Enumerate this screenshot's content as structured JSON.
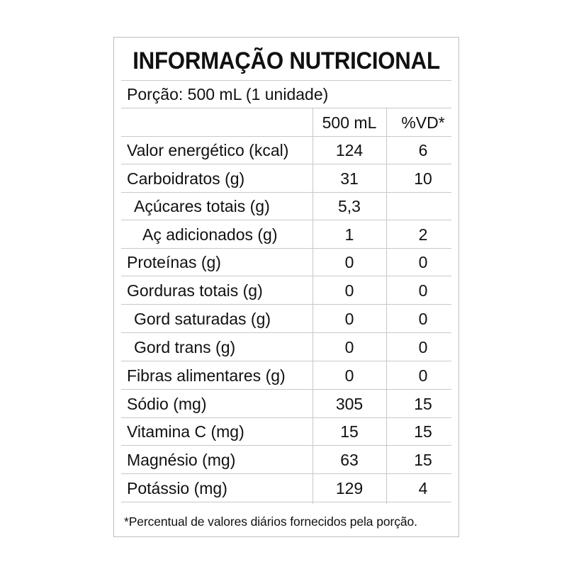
{
  "title": "INFORMAÇÃO NUTRICIONAL",
  "portion": "Porção: 500 mL (1 unidade)",
  "headers": {
    "amount": "500 mL",
    "dv": "%VD*"
  },
  "rows": [
    {
      "name": "Valor energético (kcal)",
      "amount": "124",
      "dv": "6",
      "indent": 0
    },
    {
      "name": "Carboidratos (g)",
      "amount": "31",
      "dv": "10",
      "indent": 0
    },
    {
      "name": "Açúcares totais (g)",
      "amount": "5,3",
      "dv": "",
      "indent": 1
    },
    {
      "name": "Aç adicionados (g)",
      "amount": "1",
      "dv": "2",
      "indent": 2
    },
    {
      "name": "Proteínas (g)",
      "amount": "0",
      "dv": "0",
      "indent": 0
    },
    {
      "name": "Gorduras totais (g)",
      "amount": "0",
      "dv": "0",
      "indent": 0
    },
    {
      "name": "Gord saturadas (g)",
      "amount": "0",
      "dv": "0",
      "indent": 1
    },
    {
      "name": "Gord trans (g)",
      "amount": "0",
      "dv": "0",
      "indent": 1
    },
    {
      "name": "Fibras alimentares (g)",
      "amount": "0",
      "dv": "0",
      "indent": 0
    },
    {
      "name": "Sódio (mg)",
      "amount": "305",
      "dv": "15",
      "indent": 0
    },
    {
      "name": "Vitamina C (mg)",
      "amount": "15",
      "dv": "15",
      "indent": 0
    },
    {
      "name": "Magnésio (mg)",
      "amount": "63",
      "dv": "15",
      "indent": 0
    },
    {
      "name": "Potássio (mg)",
      "amount": "129",
      "dv": "4",
      "indent": 0
    }
  ],
  "footnote": "*Percentual de valores diários fornecidos pela porção."
}
